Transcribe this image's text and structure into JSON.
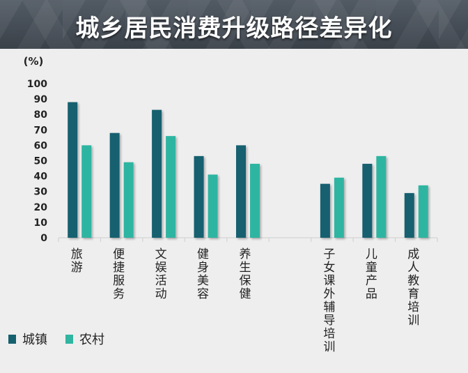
{
  "title": "城乡居民消费升级路径差异化",
  "chart_data": {
    "type": "bar",
    "title": "城乡居民消费升级路径差异化",
    "ylabel": "(%)",
    "ylim": [
      0,
      100
    ],
    "yticks": [
      0,
      10,
      20,
      30,
      40,
      50,
      60,
      70,
      80,
      90,
      100
    ],
    "categories": [
      "旅游",
      "便捷服务",
      "文娱活动",
      "健身美容",
      "养生保健",
      "",
      "子女课外辅导培训",
      "儿童产品",
      "成人教育培训"
    ],
    "series": [
      {
        "name": "城镇",
        "color": "#14606f",
        "values": [
          88,
          68,
          83,
          53,
          60,
          null,
          35,
          48,
          29
        ]
      },
      {
        "name": "农村",
        "color": "#2fb5a1",
        "values": [
          60,
          49,
          66,
          41,
          48,
          null,
          39,
          53,
          34
        ]
      }
    ],
    "grid": false,
    "legend_position": "bottom-left"
  }
}
